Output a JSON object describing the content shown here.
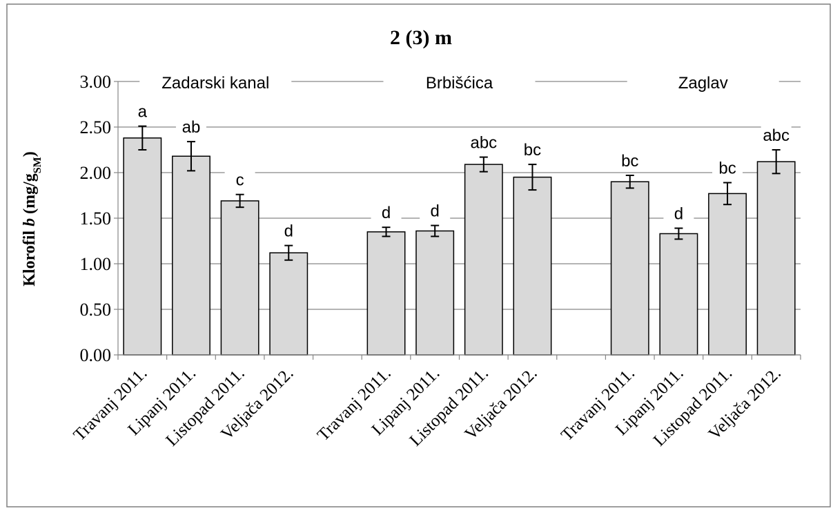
{
  "chart_data": {
    "type": "bar",
    "title": "2 (3) m",
    "ylabel": {
      "main": "Klorofil ",
      "italic": "b",
      "unit_open": " (mg/g",
      "unit_sub": "SM",
      "unit_close": ")"
    },
    "ylim": [
      0,
      3
    ],
    "yticks": [
      "0.00",
      "0.50",
      "1.00",
      "1.50",
      "2.00",
      "2.50",
      "3.00"
    ],
    "grid": true,
    "legend": "none",
    "bar_color": "#d9d9d9",
    "groups": [
      {
        "name": "Zadarski kanal",
        "categories": [
          "Travanj 2011.",
          "Lipanj 2011.",
          "Listopad 2011.",
          "Veljača 2012."
        ],
        "values": [
          2.38,
          2.18,
          1.69,
          1.12
        ],
        "errors": [
          0.13,
          0.16,
          0.07,
          0.08
        ],
        "letters": [
          "a",
          "ab",
          "c",
          "d"
        ]
      },
      {
        "name": "Brbišćica",
        "categories": [
          "Travanj 2011.",
          "Lipanj 2011.",
          "Listopad 2011.",
          "Veljača 2012."
        ],
        "values": [
          1.35,
          1.36,
          2.09,
          1.95
        ],
        "errors": [
          0.05,
          0.06,
          0.08,
          0.14
        ],
        "letters": [
          "d",
          "d",
          "abc",
          "bc"
        ]
      },
      {
        "name": "Zaglav",
        "categories": [
          "Travanj 2011.",
          "Lipanj 2011.",
          "Listopad 2011.",
          "Veljača 2012."
        ],
        "values": [
          1.9,
          1.33,
          1.77,
          2.12
        ],
        "errors": [
          0.07,
          0.06,
          0.12,
          0.13
        ],
        "letters": [
          "bc",
          "d",
          "bc",
          "abc"
        ]
      }
    ]
  }
}
